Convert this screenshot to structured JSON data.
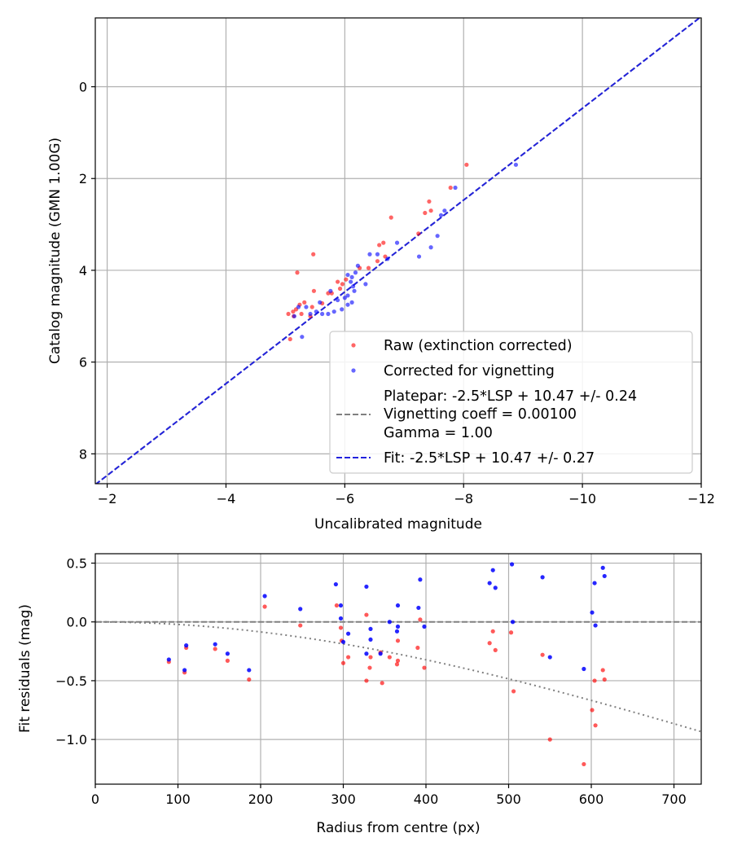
{
  "chart_data": [
    {
      "type": "scatter",
      "xlabel": "Uncalibrated magnitude",
      "ylabel": "Catalog magnitude (GMN 1.00G)",
      "xlim": [
        -1.8,
        -12.0
      ],
      "ylim": [
        -1.5,
        8.65
      ],
      "y_inverted": true,
      "x_inverted": true,
      "grid": true,
      "xticks": [
        -2,
        -4,
        -6,
        -8,
        -10,
        -12
      ],
      "xtick_labels": [
        "−2",
        "−4",
        "−6",
        "−8",
        "−10",
        "−12"
      ],
      "yticks": [
        0,
        2,
        4,
        6,
        8
      ],
      "ytick_labels": [
        "0",
        "2",
        "4",
        "6",
        "8"
      ],
      "legend_position": "lower-right",
      "legend": [
        {
          "label": "Raw (extinction corrected)",
          "kind": "marker",
          "color": "#ff0000"
        },
        {
          "label": "Corrected for vignetting",
          "kind": "marker",
          "color": "#0000ff"
        },
        {
          "label_lines": [
            "Platepar: -2.5*LSP + 10.47 +/- 0.24",
            "Vignetting coeff = 0.00100",
            "Gamma = 1.00"
          ],
          "kind": "dashed",
          "color": "#808080"
        },
        {
          "label": "Fit: -2.5*LSP + 10.47 +/- 0.27",
          "kind": "dashed",
          "color": "#2222dd"
        }
      ],
      "lines": [
        {
          "name": "Platepar",
          "slope": 1,
          "intercept": 10.47,
          "color": "#808080"
        },
        {
          "name": "Fit",
          "slope": 1,
          "intercept": 10.47,
          "color": "#2222dd"
        }
      ],
      "series": [
        {
          "name": "Raw (extinction corrected)",
          "color": "#ff0000",
          "points": [
            [
              -8.05,
              1.7
            ],
            [
              -7.78,
              2.2
            ],
            [
              -7.42,
              2.5
            ],
            [
              -7.45,
              2.7
            ],
            [
              -7.35,
              2.75
            ],
            [
              -6.78,
              2.85
            ],
            [
              -7.24,
              3.2
            ],
            [
              -6.65,
              3.4
            ],
            [
              -6.58,
              3.45
            ],
            [
              -6.68,
              3.7
            ],
            [
              -6.55,
              3.8
            ],
            [
              -6.4,
              3.95
            ],
            [
              -6.25,
              3.95
            ],
            [
              -5.47,
              3.65
            ],
            [
              -5.2,
              4.05
            ],
            [
              -6.02,
              4.2
            ],
            [
              -5.96,
              4.3
            ],
            [
              -5.88,
              4.25
            ],
            [
              -5.92,
              4.4
            ],
            [
              -5.48,
              4.45
            ],
            [
              -5.78,
              4.5
            ],
            [
              -5.72,
              4.5
            ],
            [
              -5.62,
              4.72
            ],
            [
              -5.45,
              4.8
            ],
            [
              -5.32,
              4.7
            ],
            [
              -5.24,
              4.75
            ],
            [
              -5.18,
              4.85
            ],
            [
              -5.05,
              4.95
            ],
            [
              -5.13,
              4.9
            ],
            [
              -5.27,
              4.95
            ],
            [
              -5.42,
              5.0
            ],
            [
              -5.14,
              5.0
            ],
            [
              -5.08,
              5.5
            ]
          ]
        },
        {
          "name": "Corrected for vignetting",
          "color": "#0000ff",
          "points": [
            [
              -8.88,
              1.7
            ],
            [
              -7.86,
              2.2
            ],
            [
              -7.68,
              2.7
            ],
            [
              -7.62,
              2.8
            ],
            [
              -7.56,
              3.25
            ],
            [
              -7.45,
              3.5
            ],
            [
              -7.25,
              3.7
            ],
            [
              -6.88,
              3.4
            ],
            [
              -6.72,
              3.75
            ],
            [
              -6.55,
              3.65
            ],
            [
              -6.42,
              3.65
            ],
            [
              -6.35,
              4.3
            ],
            [
              -6.22,
              3.9
            ],
            [
              -6.18,
              4.05
            ],
            [
              -6.14,
              4.35
            ],
            [
              -6.12,
              4.15
            ],
            [
              -6.1,
              4.25
            ],
            [
              -6.16,
              4.45
            ],
            [
              -6.05,
              4.1
            ],
            [
              -6.05,
              4.55
            ],
            [
              -6.0,
              4.6
            ],
            [
              -6.12,
              4.7
            ],
            [
              -6.05,
              4.75
            ],
            [
              -5.95,
              4.85
            ],
            [
              -5.88,
              4.65
            ],
            [
              -5.82,
              4.9
            ],
            [
              -5.76,
              4.45
            ],
            [
              -5.72,
              4.95
            ],
            [
              -5.62,
              4.95
            ],
            [
              -5.58,
              4.7
            ],
            [
              -5.52,
              4.9
            ],
            [
              -5.42,
              4.95
            ],
            [
              -5.35,
              4.8
            ],
            [
              -5.22,
              4.8
            ],
            [
              -5.28,
              5.45
            ],
            [
              -5.15,
              5.0
            ]
          ]
        }
      ]
    },
    {
      "type": "scatter",
      "xlabel": "Radius from centre (px)",
      "ylabel": "Fit residuals (mag)",
      "xlim": [
        0,
        733
      ],
      "ylim": [
        -1.38,
        0.58
      ],
      "grid": true,
      "xticks": [
        0,
        100,
        200,
        300,
        400,
        500,
        600,
        700
      ],
      "xtick_labels": [
        "0",
        "100",
        "200",
        "300",
        "400",
        "500",
        "600",
        "700"
      ],
      "yticks": [
        0.5,
        0.0,
        -0.5,
        -1.0
      ],
      "ytick_labels": [
        "0.5",
        "0.0",
        "−0.5",
        "−1.0"
      ],
      "lines": [
        {
          "name": "zero",
          "y": 0,
          "color": "#808080",
          "style": "dashed"
        },
        {
          "name": "vignetting curve",
          "coeff": 0.001,
          "color": "#808080",
          "style": "dotted"
        }
      ],
      "series": [
        {
          "name": "Raw",
          "color": "#ff0000",
          "points": [
            [
              89,
              -0.34
            ],
            [
              108,
              -0.43
            ],
            [
              110,
              -0.22
            ],
            [
              145,
              -0.23
            ],
            [
              160,
              -0.33
            ],
            [
              186,
              -0.49
            ],
            [
              205,
              0.13
            ],
            [
              248,
              -0.03
            ],
            [
              292,
              0.14
            ],
            [
              297,
              -0.05
            ],
            [
              298,
              -0.16
            ],
            [
              300,
              -0.35
            ],
            [
              306,
              -0.3
            ],
            [
              328,
              -0.5
            ],
            [
              328,
              0.06
            ],
            [
              332,
              -0.39
            ],
            [
              333,
              -0.3
            ],
            [
              345,
              -0.26
            ],
            [
              347,
              -0.52
            ],
            [
              356,
              -0.3
            ],
            [
              365,
              -0.36
            ],
            [
              366,
              -0.33
            ],
            [
              366,
              -0.16
            ],
            [
              390,
              -0.22
            ],
            [
              393,
              0.02
            ],
            [
              398,
              -0.39
            ],
            [
              477,
              -0.18
            ],
            [
              481,
              -0.08
            ],
            [
              484,
              -0.24
            ],
            [
              503,
              -0.09
            ],
            [
              506,
              -0.59
            ],
            [
              541,
              -0.28
            ],
            [
              550,
              -1.0
            ],
            [
              591,
              -1.21
            ],
            [
              601,
              -0.75
            ],
            [
              604,
              -0.5
            ],
            [
              605,
              -0.88
            ],
            [
              614,
              -0.41
            ],
            [
              616,
              -0.49
            ]
          ]
        },
        {
          "name": "Corrected",
          "color": "#0000ff",
          "points": [
            [
              89,
              -0.32
            ],
            [
              108,
              -0.41
            ],
            [
              110,
              -0.2
            ],
            [
              145,
              -0.19
            ],
            [
              160,
              -0.27
            ],
            [
              186,
              -0.41
            ],
            [
              205,
              0.22
            ],
            [
              248,
              0.11
            ],
            [
              291,
              0.32
            ],
            [
              297,
              0.14
            ],
            [
              297,
              0.03
            ],
            [
              300,
              -0.17
            ],
            [
              306,
              -0.1
            ],
            [
              328,
              -0.27
            ],
            [
              328,
              0.3
            ],
            [
              333,
              -0.06
            ],
            [
              333,
              -0.15
            ],
            [
              345,
              -0.27
            ],
            [
              356,
              0.0
            ],
            [
              365,
              -0.08
            ],
            [
              366,
              -0.04
            ],
            [
              366,
              0.14
            ],
            [
              391,
              0.12
            ],
            [
              393,
              0.36
            ],
            [
              398,
              -0.04
            ],
            [
              477,
              0.33
            ],
            [
              481,
              0.44
            ],
            [
              484,
              0.29
            ],
            [
              504,
              0.49
            ],
            [
              505,
              0.0
            ],
            [
              541,
              0.38
            ],
            [
              550,
              -0.3
            ],
            [
              591,
              -0.4
            ],
            [
              601,
              0.08
            ],
            [
              604,
              0.33
            ],
            [
              605,
              -0.03
            ],
            [
              614,
              0.46
            ],
            [
              616,
              0.39
            ]
          ]
        }
      ]
    }
  ]
}
